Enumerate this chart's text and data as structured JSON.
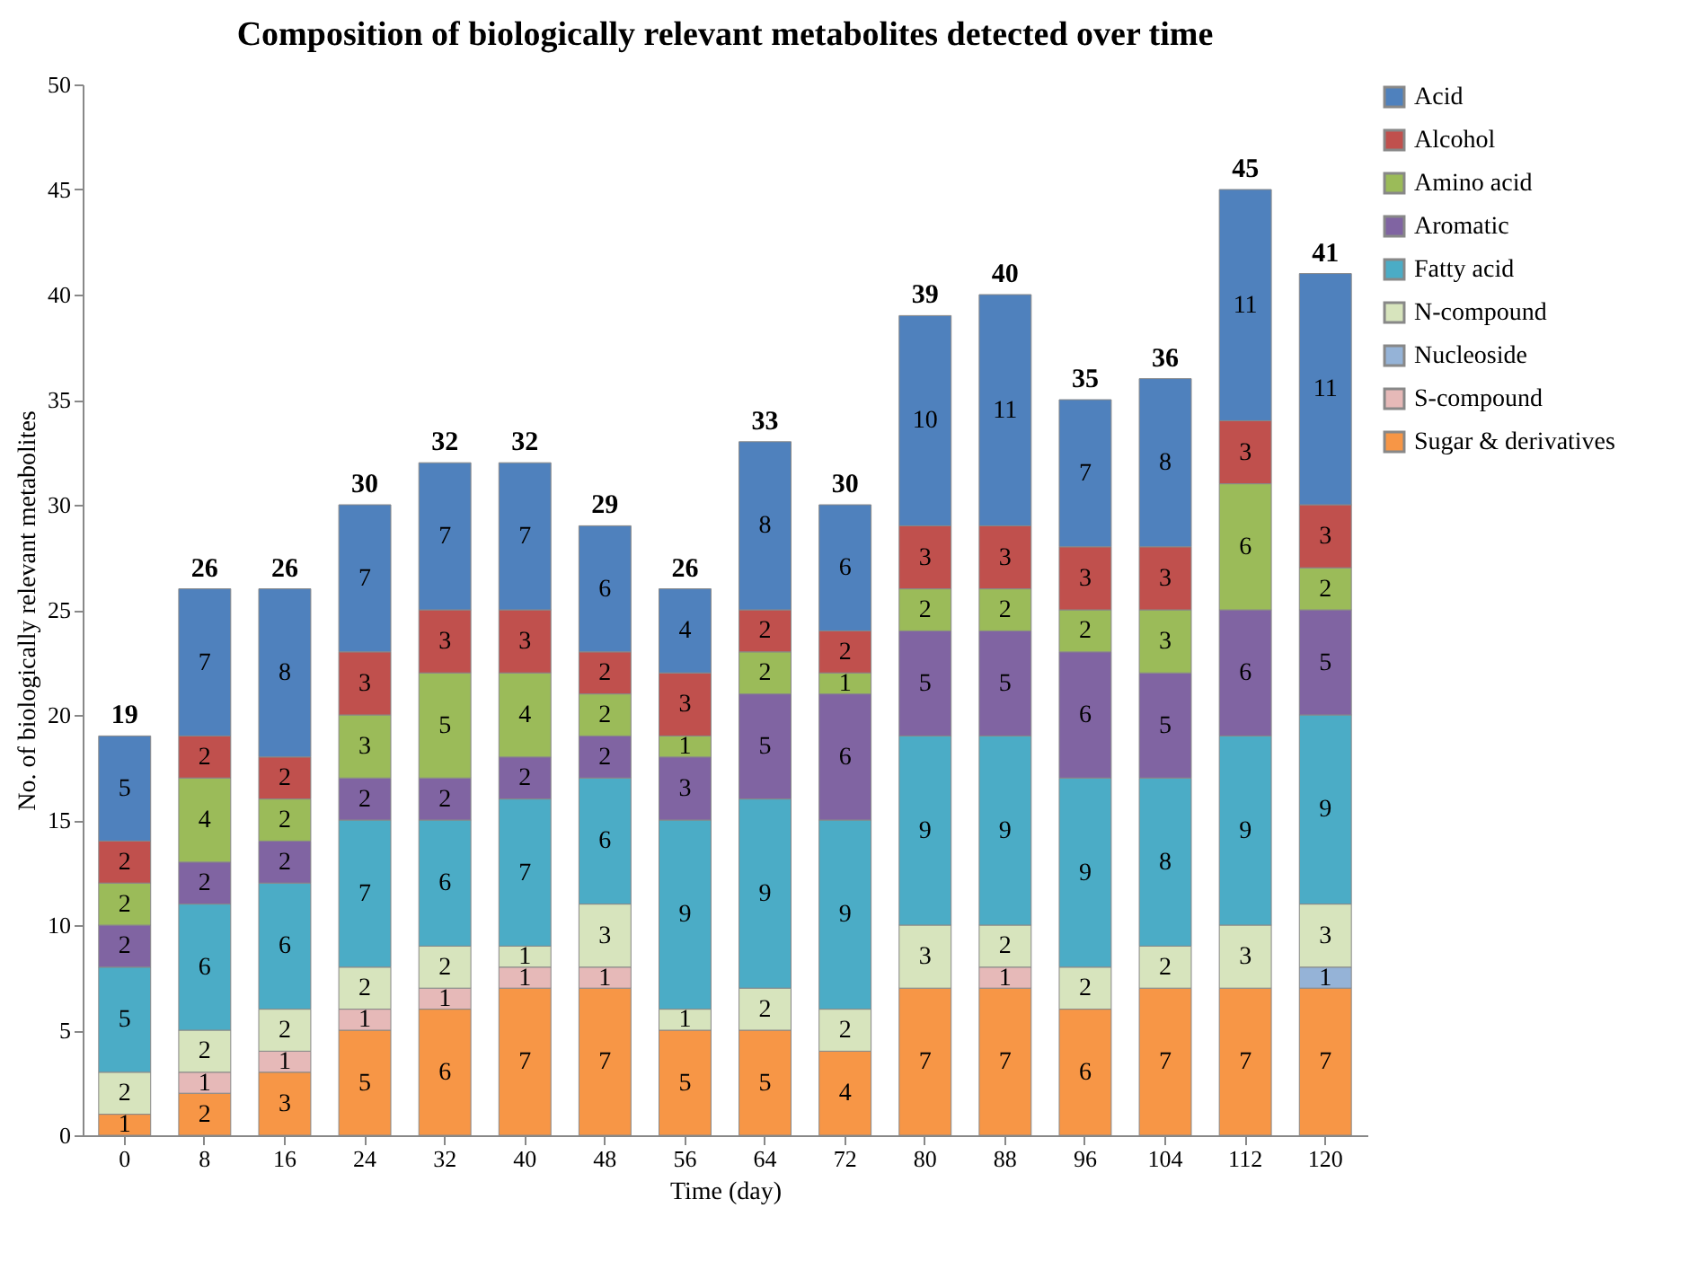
{
  "chart_data": {
    "type": "bar",
    "stacked": true,
    "title": "Composition of biologically relevant metabolites detected over time",
    "xlabel": "Time (day)",
    "ylabel": "No. of biologically relevant metabolites",
    "categories": [
      "0",
      "8",
      "16",
      "24",
      "32",
      "40",
      "48",
      "56",
      "64",
      "72",
      "80",
      "88",
      "96",
      "104",
      "112",
      "120"
    ],
    "ylim": [
      0,
      50
    ],
    "yticks": [
      0,
      5,
      10,
      15,
      20,
      25,
      30,
      35,
      40,
      45,
      50
    ],
    "grid": false,
    "legend": "right",
    "data_labels": true,
    "totals": [
      "19",
      "26",
      "26",
      "30",
      "32",
      "32",
      "29",
      "26",
      "33",
      "30",
      "39",
      "40",
      "35",
      "36",
      "45",
      "41"
    ],
    "series": [
      {
        "name": "Sugar & derivatives",
        "color": "#f79646",
        "values": [
          1,
          2,
          3,
          5,
          6,
          7,
          7,
          5,
          5,
          4,
          7,
          7,
          6,
          7,
          7,
          7
        ]
      },
      {
        "name": "S-compound",
        "color": "#e6b9b8",
        "values": [
          null,
          1,
          1,
          1,
          1,
          1,
          1,
          null,
          null,
          null,
          null,
          1,
          null,
          null,
          null,
          null
        ]
      },
      {
        "name": "Nucleoside",
        "color": "#95b3d7",
        "values": [
          null,
          null,
          null,
          null,
          null,
          null,
          null,
          null,
          null,
          null,
          null,
          null,
          null,
          null,
          null,
          1
        ]
      },
      {
        "name": "N-compound",
        "color": "#d7e4bd",
        "values": [
          2,
          2,
          2,
          2,
          2,
          1,
          3,
          1,
          2,
          2,
          3,
          2,
          2,
          2,
          3,
          3
        ]
      },
      {
        "name": "Fatty acid",
        "color": "#4bacc6",
        "values": [
          5,
          6,
          6,
          7,
          6,
          7,
          6,
          9,
          9,
          9,
          9,
          9,
          9,
          8,
          9,
          9
        ]
      },
      {
        "name": "Aromatic",
        "color": "#8064a2",
        "values": [
          2,
          2,
          2,
          2,
          2,
          2,
          2,
          3,
          5,
          6,
          5,
          5,
          6,
          5,
          6,
          5
        ]
      },
      {
        "name": "Amino acid",
        "color": "#9bbb59",
        "values": [
          2,
          4,
          2,
          3,
          5,
          4,
          2,
          1,
          2,
          1,
          2,
          2,
          2,
          3,
          6,
          2
        ]
      },
      {
        "name": "Alcohol",
        "color": "#c0504d",
        "values": [
          2,
          2,
          2,
          3,
          3,
          3,
          2,
          3,
          2,
          2,
          3,
          3,
          3,
          3,
          3,
          3
        ]
      },
      {
        "name": "Acid",
        "color": "#4f81bd",
        "values": [
          5,
          7,
          8,
          7,
          7,
          7,
          6,
          4,
          8,
          6,
          10,
          11,
          7,
          8,
          11,
          11
        ]
      }
    ]
  }
}
